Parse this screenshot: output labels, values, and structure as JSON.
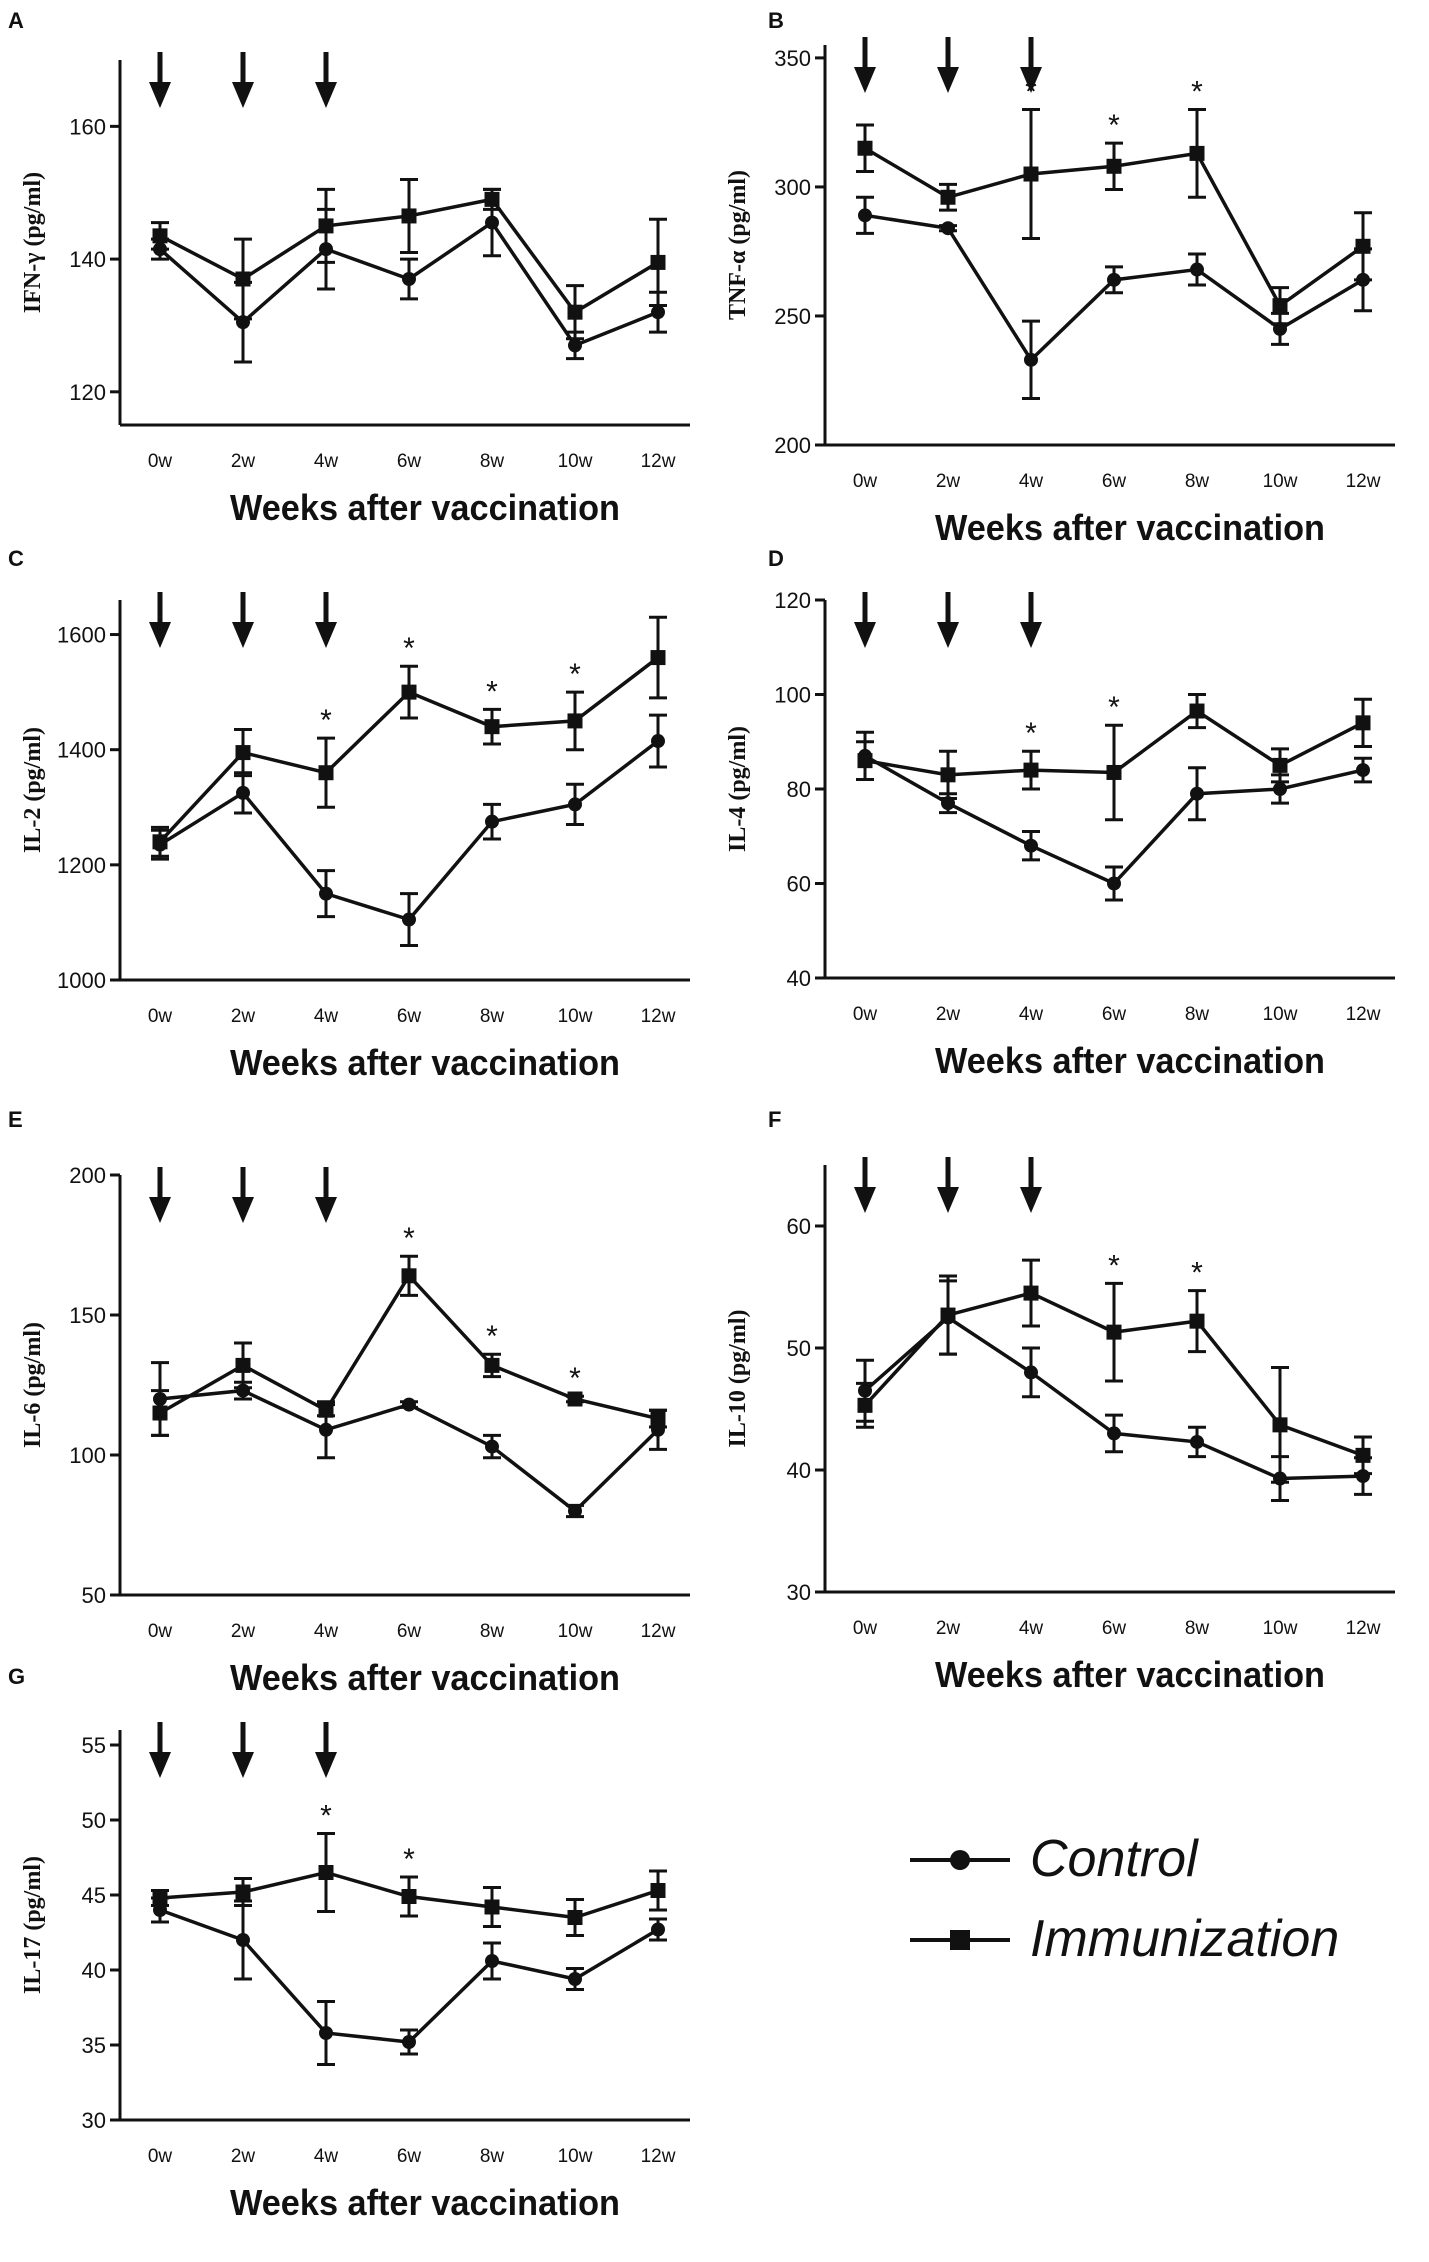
{
  "figure": {
    "xlabel": "Weeks after vaccination",
    "legend": {
      "position": "bottom-right",
      "entries": [
        {
          "name": "Control",
          "marker": "circle"
        },
        {
          "name": "Immunization",
          "marker": "square"
        }
      ]
    },
    "colors": {
      "ink": "#111111",
      "background": "#ffffff"
    }
  },
  "chart_data": [
    {
      "panel": "A",
      "type": "line",
      "ylabel": "IFN-γ (pg/ml)",
      "xlabel": "Weeks after vaccination",
      "categories": [
        "0w",
        "2w",
        "4w",
        "6w",
        "8w",
        "10w",
        "12w"
      ],
      "ylim": [
        115,
        170
      ],
      "yticks": [
        120,
        140,
        160
      ],
      "arrows_at": [
        "0w",
        "2w",
        "4w"
      ],
      "significant_at": [],
      "series": [
        {
          "name": "Control",
          "values": [
            141.5,
            130.5,
            141.5,
            137,
            145.5,
            127,
            132
          ],
          "errors": [
            1.5,
            6,
            6,
            3,
            5,
            2,
            3
          ]
        },
        {
          "name": "Immunization",
          "values": [
            143.5,
            137,
            145,
            146.5,
            149,
            132,
            139.5
          ],
          "errors": [
            2,
            6,
            5.5,
            5.5,
            1.5,
            4,
            6.5
          ]
        }
      ]
    },
    {
      "panel": "B",
      "type": "line",
      "ylabel": "TNF-α (pg/ml)",
      "xlabel": "Weeks after vaccination",
      "categories": [
        "0w",
        "2w",
        "4w",
        "6w",
        "8w",
        "10w",
        "12w"
      ],
      "ylim": [
        200,
        355
      ],
      "yticks": [
        200,
        250,
        300,
        350
      ],
      "arrows_at": [
        "0w",
        "2w",
        "4w"
      ],
      "significant_at": [
        "4w",
        "6w",
        "8w"
      ],
      "series": [
        {
          "name": "Control",
          "values": [
            289,
            284,
            233,
            264,
            268,
            245,
            264
          ],
          "errors": [
            7,
            1,
            15,
            5,
            6,
            6,
            12
          ]
        },
        {
          "name": "Immunization",
          "values": [
            315,
            296,
            305,
            308,
            313,
            254,
            277
          ],
          "errors": [
            9,
            5,
            25,
            9,
            17,
            7,
            13
          ]
        }
      ]
    },
    {
      "panel": "C",
      "type": "line",
      "ylabel": "IL-2 (pg/ml)",
      "xlabel": "Weeks after vaccination",
      "categories": [
        "0w",
        "2w",
        "4w",
        "6w",
        "8w",
        "10w",
        "12w"
      ],
      "ylim": [
        1000,
        1660
      ],
      "yticks": [
        1000,
        1200,
        1400,
        1600
      ],
      "arrows_at": [
        "0w",
        "2w",
        "4w"
      ],
      "significant_at": [
        "4w",
        "6w",
        "8w",
        "10w"
      ],
      "series": [
        {
          "name": "Control",
          "values": [
            1235,
            1325,
            1150,
            1105,
            1275,
            1305,
            1415
          ],
          "errors": [
            25,
            35,
            40,
            45,
            30,
            35,
            45
          ]
        },
        {
          "name": "Immunization",
          "values": [
            1240,
            1395,
            1360,
            1500,
            1440,
            1450,
            1560
          ],
          "errors": [
            25,
            40,
            60,
            45,
            30,
            50,
            70
          ]
        }
      ]
    },
    {
      "panel": "D",
      "type": "line",
      "ylabel": "IL-4 (pg/ml)",
      "xlabel": "Weeks after vaccination",
      "categories": [
        "0w",
        "2w",
        "4w",
        "6w",
        "8w",
        "10w",
        "12w"
      ],
      "ylim": [
        40,
        120
      ],
      "yticks": [
        40,
        60,
        80,
        100,
        120
      ],
      "arrows_at": [
        "0w",
        "2w",
        "4w"
      ],
      "significant_at": [
        "4w",
        "6w"
      ],
      "series": [
        {
          "name": "Control",
          "values": [
            87,
            77,
            68,
            60,
            79,
            80,
            84
          ],
          "errors": [
            5,
            2,
            3,
            3.5,
            5.5,
            3,
            2.5
          ]
        },
        {
          "name": "Immunization",
          "values": [
            86,
            83,
            84,
            83.5,
            96.5,
            85,
            94
          ],
          "errors": [
            4,
            5,
            4,
            10,
            3.5,
            3.5,
            5
          ]
        }
      ]
    },
    {
      "panel": "E",
      "type": "line",
      "ylabel": "IL-6 (pg/ml)",
      "xlabel": "Weeks after vaccination",
      "categories": [
        "0w",
        "2w",
        "4w",
        "6w",
        "8w",
        "10w",
        "12w"
      ],
      "ylim": [
        50,
        200
      ],
      "yticks": [
        50,
        100,
        150,
        200
      ],
      "arrows_at": [
        "0w",
        "2w",
        "4w"
      ],
      "significant_at": [
        "6w",
        "8w",
        "10w"
      ],
      "series": [
        {
          "name": "Control",
          "values": [
            120,
            123,
            109,
            118,
            103,
            80,
            109
          ],
          "errors": [
            13,
            3,
            10,
            1,
            4,
            2,
            7
          ]
        },
        {
          "name": "Immunization",
          "values": [
            115,
            132,
            116,
            164,
            132,
            120,
            113
          ],
          "errors": [
            8,
            8,
            2,
            7,
            4,
            1,
            3
          ]
        }
      ]
    },
    {
      "panel": "F",
      "type": "line",
      "ylabel": "IL-10 (pg/ml)",
      "xlabel": "Weeks after vaccination",
      "categories": [
        "0w",
        "2w",
        "4w",
        "6w",
        "8w",
        "10w",
        "12w"
      ],
      "ylim": [
        30,
        65
      ],
      "yticks": [
        30,
        40,
        50,
        60
      ],
      "arrows_at": [
        "0w",
        "2w",
        "4w"
      ],
      "significant_at": [
        "6w",
        "8w"
      ],
      "series": [
        {
          "name": "Control",
          "values": [
            46.5,
            52.5,
            48,
            43,
            42.3,
            39.3,
            39.5
          ],
          "errors": [
            2.5,
            3,
            2,
            1.5,
            1.2,
            1.8,
            1.5
          ]
        },
        {
          "name": "Immunization",
          "values": [
            45.3,
            52.7,
            54.5,
            51.3,
            52.2,
            43.7,
            41.2
          ],
          "errors": [
            1.8,
            3.2,
            2.7,
            4,
            2.5,
            4.7,
            1.5
          ]
        }
      ]
    },
    {
      "panel": "G",
      "type": "line",
      "ylabel": "IL-17 (pg/ml)",
      "xlabel": "Weeks after vaccination",
      "categories": [
        "0w",
        "2w",
        "4w",
        "6w",
        "8w",
        "10w",
        "12w"
      ],
      "ylim": [
        30,
        56
      ],
      "yticks": [
        30,
        35,
        40,
        45,
        50,
        55
      ],
      "arrows_at": [
        "0w",
        "2w",
        "4w"
      ],
      "significant_at": [
        "4w",
        "6w"
      ],
      "series": [
        {
          "name": "Control",
          "values": [
            44,
            42,
            35.8,
            35.2,
            40.6,
            39.4,
            42.7
          ],
          "errors": [
            0.8,
            2.6,
            2.1,
            0.8,
            1.2,
            0.7,
            0.7
          ]
        },
        {
          "name": "Immunization",
          "values": [
            44.8,
            45.2,
            46.5,
            44.9,
            44.2,
            43.5,
            45.3
          ],
          "errors": [
            0.5,
            0.9,
            2.6,
            1.3,
            1.3,
            1.2,
            1.3
          ]
        }
      ]
    }
  ]
}
